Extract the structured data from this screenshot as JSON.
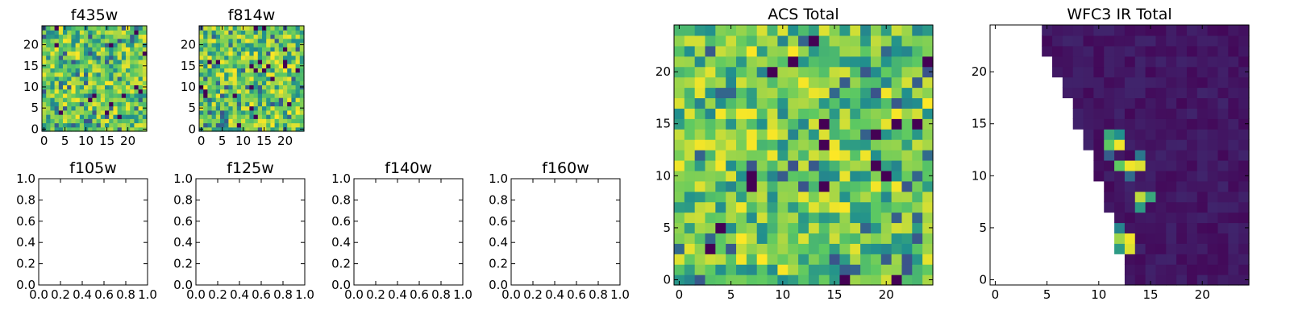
{
  "palette": [
    "#440154",
    "#3b528b",
    "#21908d",
    "#5dc962",
    "#fde725"
  ],
  "chart_data": [
    {
      "id": "f435w",
      "type": "heatmap",
      "title": "f435w",
      "n": 25,
      "seed": 11,
      "dist": "acs",
      "xticks": [
        0,
        5,
        10,
        15,
        20
      ],
      "yticks": [
        0,
        5,
        10,
        15,
        20
      ],
      "xtick_labels": [
        "0",
        "5",
        "10",
        "15",
        "20"
      ],
      "ytick_labels": [
        "0",
        "5",
        "10",
        "15",
        "20"
      ]
    },
    {
      "id": "f814w",
      "type": "heatmap",
      "title": "f814w",
      "n": 25,
      "seed": 23,
      "dist": "acs",
      "xticks": [
        0,
        5,
        10,
        15,
        20
      ],
      "yticks": [
        0,
        5,
        10,
        15,
        20
      ],
      "xtick_labels": [
        "0",
        "5",
        "10",
        "15",
        "20"
      ],
      "ytick_labels": [
        "0",
        "5",
        "10",
        "15",
        "20"
      ]
    },
    {
      "id": "f105w",
      "type": "empty",
      "title": "f105w",
      "xticks": [
        0,
        0.2,
        0.4,
        0.6,
        0.8,
        1.0
      ],
      "yticks": [
        0,
        0.2,
        0.4,
        0.6,
        0.8,
        1.0
      ],
      "xtick_labels": [
        "0.0",
        "0.2",
        "0.4",
        "0.6",
        "0.8",
        "1.0"
      ],
      "ytick_labels": [
        "0.0",
        "0.2",
        "0.4",
        "0.6",
        "0.8",
        "1.0"
      ]
    },
    {
      "id": "f125w",
      "type": "empty",
      "title": "f125w",
      "xticks": [
        0,
        0.2,
        0.4,
        0.6,
        0.8,
        1.0
      ],
      "yticks": [
        0,
        0.2,
        0.4,
        0.6,
        0.8,
        1.0
      ],
      "xtick_labels": [
        "0.0",
        "0.2",
        "0.4",
        "0.6",
        "0.8",
        "1.0"
      ],
      "ytick_labels": [
        "0.0",
        "0.2",
        "0.4",
        "0.6",
        "0.8",
        "1.0"
      ]
    },
    {
      "id": "f140w",
      "type": "empty",
      "title": "f140w",
      "xticks": [
        0,
        0.2,
        0.4,
        0.6,
        0.8,
        1.0
      ],
      "yticks": [
        0,
        0.2,
        0.4,
        0.6,
        0.8,
        1.0
      ],
      "xtick_labels": [
        "0.0",
        "0.2",
        "0.4",
        "0.6",
        "0.8",
        "1.0"
      ],
      "ytick_labels": [
        "0.0",
        "0.2",
        "0.4",
        "0.6",
        "0.8",
        "1.0"
      ]
    },
    {
      "id": "f160w",
      "type": "empty",
      "title": "f160w",
      "xticks": [
        0,
        0.2,
        0.4,
        0.6,
        0.8,
        1.0
      ],
      "yticks": [
        0,
        0.2,
        0.4,
        0.6,
        0.8,
        1.0
      ],
      "xtick_labels": [
        "0.0",
        "0.2",
        "0.4",
        "0.6",
        "0.8",
        "1.0"
      ],
      "ytick_labels": [
        "0.0",
        "0.2",
        "0.4",
        "0.6",
        "0.8",
        "1.0"
      ]
    },
    {
      "id": "acs_total",
      "type": "heatmap",
      "title": "ACS Total",
      "n": 25,
      "seed": 37,
      "dist": "acs",
      "xticks": [
        0,
        5,
        10,
        15,
        20
      ],
      "yticks": [
        0,
        5,
        10,
        15,
        20
      ],
      "xtick_labels": [
        "0",
        "5",
        "10",
        "15",
        "20"
      ],
      "ytick_labels": [
        "0",
        "5",
        "10",
        "15",
        "20"
      ]
    },
    {
      "id": "wfc3_ir_total",
      "type": "heatmap",
      "title": "WFC3 IR Total",
      "n": 25,
      "seed": 5,
      "dist": "ir",
      "xticks": [
        0,
        5,
        10,
        15,
        20
      ],
      "yticks": [
        0,
        5,
        10,
        15,
        20
      ],
      "xtick_labels": [
        "0",
        "5",
        "10",
        "15",
        "20"
      ],
      "ytick_labels": [
        "0",
        "5",
        "10",
        "15",
        "20"
      ],
      "masked_edge_x_by_row": [
        13,
        13,
        13,
        12,
        12,
        12,
        12,
        11,
        11,
        11,
        10,
        10,
        10,
        9,
        9,
        8,
        8,
        8,
        7,
        7,
        6,
        6,
        5,
        5,
        5
      ],
      "bright_pixels": [
        {
          "x": 13,
          "y": 4,
          "v": 0.98
        },
        {
          "x": 12,
          "y": 4,
          "v": 0.85
        },
        {
          "x": 13,
          "y": 3,
          "v": 0.95
        },
        {
          "x": 12,
          "y": 3,
          "v": 0.55
        },
        {
          "x": 12,
          "y": 5,
          "v": 0.45
        },
        {
          "x": 14,
          "y": 8,
          "v": 0.9
        },
        {
          "x": 14,
          "y": 7,
          "v": 0.55
        },
        {
          "x": 15,
          "y": 8,
          "v": 0.6
        },
        {
          "x": 12,
          "y": 11,
          "v": 0.75
        },
        {
          "x": 13,
          "y": 11,
          "v": 0.98
        },
        {
          "x": 14,
          "y": 11,
          "v": 0.95
        },
        {
          "x": 11,
          "y": 13,
          "v": 0.75
        },
        {
          "x": 12,
          "y": 13,
          "v": 0.98
        },
        {
          "x": 11,
          "y": 14,
          "v": 0.6
        },
        {
          "x": 12,
          "y": 14,
          "v": 0.5
        },
        {
          "x": 13,
          "y": 10,
          "v": 0.35
        },
        {
          "x": 14,
          "y": 12,
          "v": 0.4
        },
        {
          "x": 11,
          "y": 12,
          "v": 0.3
        }
      ]
    }
  ]
}
